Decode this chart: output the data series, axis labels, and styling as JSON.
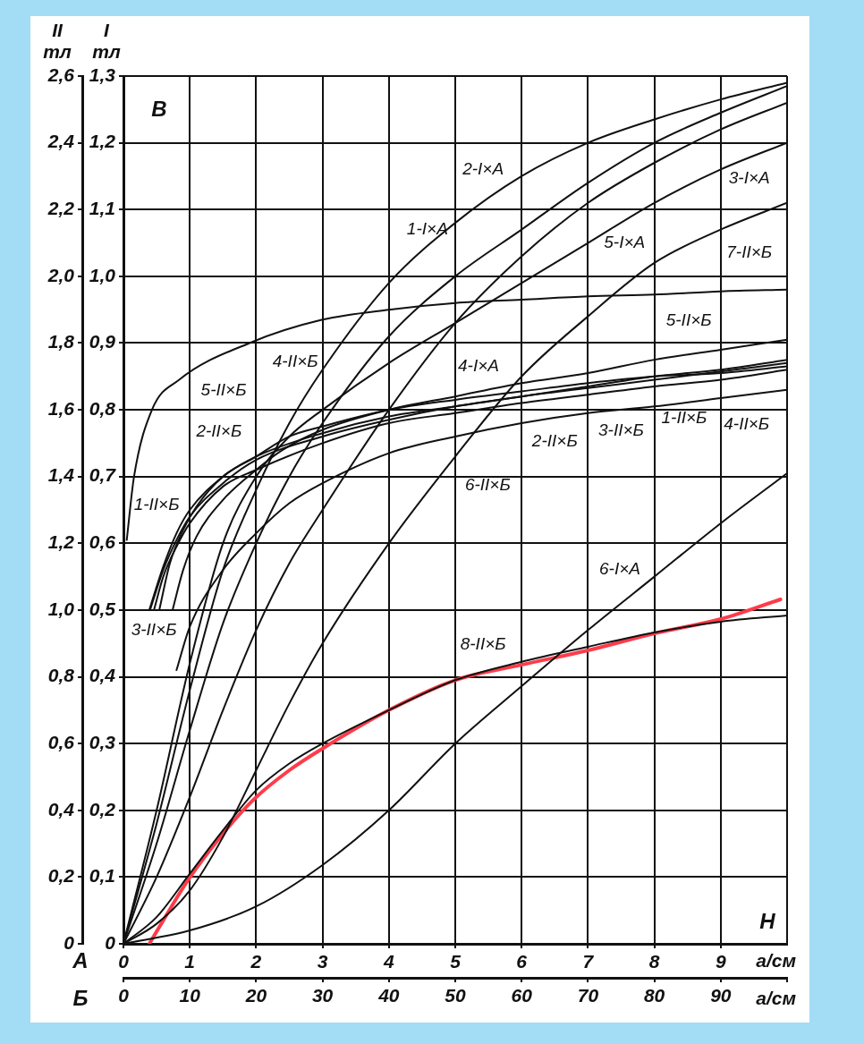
{
  "chart_data": {
    "type": "line",
    "xlabel": "a/см",
    "x2label": "a/см",
    "ylabel": "I тл",
    "y2label": "II тл",
    "xlim": [
      0,
      100
    ],
    "xticks": [
      0,
      10,
      20,
      30,
      40,
      50,
      60,
      70,
      80,
      90,
      {
        "value": 100,
        "label": null
      }
    ],
    "x2lim": [
      0,
      10
    ],
    "x2ticks": [
      0,
      1,
      2,
      3,
      4,
      5,
      6,
      7,
      8,
      9
    ],
    "ylim": [
      0,
      1.3
    ],
    "yticks": [
      0,
      {
        "value": 0.1,
        "label": "0,1"
      },
      {
        "value": 0.2,
        "label": "0,2"
      },
      {
        "value": 0.3,
        "label": "0,3"
      },
      {
        "value": 0.4,
        "label": "0,4"
      },
      {
        "value": 0.5,
        "label": "0,5"
      },
      {
        "value": 0.6,
        "label": "0,6"
      },
      {
        "value": 0.7,
        "label": "0,7"
      },
      {
        "value": 0.8,
        "label": "0,8"
      },
      {
        "value": 0.9,
        "label": "0,9"
      },
      {
        "value": 1.0,
        "label": "1,0"
      },
      {
        "value": 1.1,
        "label": "1,1"
      },
      {
        "value": 1.2,
        "label": "1,2"
      },
      {
        "value": 1.3,
        "label": "1,3"
      }
    ],
    "y2lim": [
      0,
      2.6
    ],
    "y2ticks": [
      0,
      {
        "value": 0.2,
        "label": "0,2"
      },
      {
        "value": 0.4,
        "label": "0,4"
      },
      {
        "value": 0.6,
        "label": "0,6"
      },
      {
        "value": 0.8,
        "label": "0,8"
      },
      {
        "value": 1.0,
        "label": "1,0"
      },
      {
        "value": 1.2,
        "label": "1,2"
      },
      {
        "value": 1.4,
        "label": "1,4"
      },
      {
        "value": 1.6,
        "label": "1,6"
      },
      {
        "value": 1.8,
        "label": "1,8"
      },
      {
        "value": 2.0,
        "label": "2,0"
      },
      {
        "value": 2.2,
        "label": "2,2"
      },
      {
        "value": 2.4,
        "label": "2,4"
      },
      {
        "value": 2.6,
        "label": "2,6"
      }
    ],
    "grid": true,
    "series": [
      {
        "color": "#111111",
        "axis": "x2",
        "x": [
          0,
          0.5,
          1,
          1.5,
          2,
          2.5,
          3,
          4,
          5,
          6,
          7,
          8,
          9,
          10
        ],
        "values": [
          0,
          0.18,
          0.38,
          0.56,
          0.68,
          0.78,
          0.86,
          0.99,
          1.08,
          1.15,
          1.2,
          1.235,
          1.265,
          1.29
        ]
      },
      {
        "color": "#111111",
        "axis": "x2",
        "x": [
          0,
          0.5,
          1,
          1.5,
          2,
          2.5,
          3,
          4,
          5,
          6,
          7,
          8,
          9,
          10
        ],
        "values": [
          0,
          0.15,
          0.32,
          0.48,
          0.6,
          0.7,
          0.78,
          0.91,
          1.0,
          1.07,
          1.14,
          1.2,
          1.245,
          1.285
        ]
      },
      {
        "color": "#111111",
        "axis": "x2",
        "x": [
          0,
          0.5,
          1,
          1.5,
          2,
          2.5,
          3,
          4,
          5,
          6,
          7,
          8,
          9,
          10
        ],
        "values": [
          0,
          0.2,
          0.42,
          0.6,
          0.7,
          0.76,
          0.8,
          0.87,
          0.93,
          0.99,
          1.05,
          1.11,
          1.16,
          1.2
        ]
      },
      {
        "color": "#111111",
        "axis": "x2",
        "x": [
          0,
          0.5,
          1,
          1.5,
          2,
          2.5,
          3,
          4,
          5,
          6,
          7,
          8,
          9,
          10
        ],
        "values": [
          0,
          0.1,
          0.22,
          0.35,
          0.47,
          0.57,
          0.65,
          0.8,
          0.93,
          1.03,
          1.11,
          1.17,
          1.22,
          1.26
        ]
      },
      {
        "color": "#111111",
        "axis": "x2",
        "x": [
          0,
          0.5,
          1,
          1.5,
          2,
          2.5,
          3,
          4,
          5,
          6,
          7,
          8,
          9,
          10
        ],
        "values": [
          0,
          0.03,
          0.08,
          0.16,
          0.26,
          0.36,
          0.45,
          0.6,
          0.73,
          0.85,
          0.94,
          1.02,
          1.07,
          1.11
        ]
      },
      {
        "color": "#111111",
        "axis": "x2",
        "x": [
          0,
          1,
          2,
          3,
          4,
          5,
          6,
          7,
          8,
          9,
          10
        ],
        "values": [
          0,
          0.02,
          0.056,
          0.118,
          0.2,
          0.3,
          0.386,
          0.47,
          0.55,
          0.63,
          0.705
        ]
      },
      {
        "color": "#111111",
        "axis": "y2",
        "x": [
          4,
          6,
          8,
          10,
          15,
          20,
          30,
          40,
          50,
          60,
          70,
          80,
          90,
          100
        ],
        "values": [
          1.0,
          1.12,
          1.21,
          1.28,
          1.38,
          1.45,
          1.52,
          1.57,
          1.61,
          1.64,
          1.67,
          1.7,
          1.72,
          1.75
        ]
      },
      {
        "color": "#111111",
        "axis": "y2",
        "x": [
          4.6,
          6,
          8,
          10,
          15,
          20,
          30,
          40,
          50,
          60,
          70,
          80,
          90,
          100
        ],
        "values": [
          1.0,
          1.1,
          1.19,
          1.26,
          1.37,
          1.42,
          1.5,
          1.56,
          1.59,
          1.62,
          1.645,
          1.67,
          1.69,
          1.72
        ]
      },
      {
        "color": "#111111",
        "axis": "y2",
        "x": [
          3.9,
          6,
          8,
          10,
          15,
          20,
          30,
          40,
          50,
          60,
          70,
          80,
          90,
          100
        ],
        "values": [
          1.0,
          1.13,
          1.23,
          1.3,
          1.4,
          1.46,
          1.53,
          1.58,
          1.61,
          1.64,
          1.665,
          1.69,
          1.715,
          1.74
        ]
      },
      {
        "color": "#111111",
        "axis": "y2",
        "x": [
          5.4,
          7,
          9,
          11,
          15,
          20,
          25,
          30,
          40,
          50,
          60,
          70,
          80,
          90,
          100
        ],
        "values": [
          1.0,
          1.14,
          1.24,
          1.31,
          1.4,
          1.46,
          1.52,
          1.55,
          1.6,
          1.63,
          1.655,
          1.68,
          1.7,
          1.71,
          1.73
        ]
      },
      {
        "color": "#111111",
        "axis": "y2",
        "x": [
          7.4,
          9,
          11,
          15,
          20,
          24,
          30,
          40,
          50,
          60,
          70,
          80,
          90,
          100
        ],
        "values": [
          1.0,
          1.12,
          1.22,
          1.33,
          1.42,
          1.48,
          1.54,
          1.6,
          1.64,
          1.68,
          1.71,
          1.75,
          1.78,
          1.81
        ]
      },
      {
        "color": "#111111",
        "axis": "y2",
        "x": [
          8,
          10,
          15,
          20,
          25,
          30,
          40,
          50,
          60,
          70,
          80,
          90,
          100
        ],
        "values": [
          0.82,
          0.95,
          1.12,
          1.23,
          1.32,
          1.38,
          1.47,
          1.52,
          1.56,
          1.59,
          1.61,
          1.635,
          1.66
        ]
      },
      {
        "color": "#111111",
        "axis": "y2",
        "x": [
          0.5,
          1.6,
          4.3,
          8.4,
          19,
          30,
          40,
          50,
          60,
          70,
          80,
          90,
          100
        ],
        "values": [
          1.21,
          1.4,
          1.6,
          1.69,
          1.8,
          1.87,
          1.9,
          1.92,
          1.93,
          1.94,
          1.945,
          1.955,
          1.96
        ]
      },
      {
        "color": "#111111",
        "axis": "y2",
        "x": [
          0,
          5,
          10,
          15,
          20,
          25,
          30,
          40,
          50,
          60,
          70,
          80,
          90,
          100
        ],
        "values": [
          0,
          0.08,
          0.21,
          0.34,
          0.46,
          0.54,
          0.6,
          0.7,
          0.79,
          0.845,
          0.89,
          0.933,
          0.965,
          0.984
        ]
      },
      {
        "color": "#ff3b4a",
        "axis": "y2",
        "x": [
          3.9,
          6,
          9.7,
          15,
          19.5,
          25,
          30,
          40,
          50,
          60,
          70,
          80,
          90,
          99
        ],
        "values": [
          0,
          0.07,
          0.19,
          0.33,
          0.43,
          0.52,
          0.585,
          0.7,
          0.79,
          0.836,
          0.879,
          0.93,
          0.973,
          1.032
        ]
      }
    ],
    "annotations": [
      "B",
      "H",
      "A",
      "Б",
      "2-I×A",
      "1-I×A",
      "3-I×A",
      "5-I×A",
      "7-II×Б",
      "5-II×Б",
      "4-I×A",
      "4-II×Б",
      "5-II×Б",
      "2-II×Б",
      "1-II×Б",
      "3-II×Б",
      "2-II×Б",
      "3-II×Б",
      "1-II×Б",
      "4-II×Б",
      "6-II×Б",
      "6-I×A",
      "8-II×Б"
    ]
  }
}
